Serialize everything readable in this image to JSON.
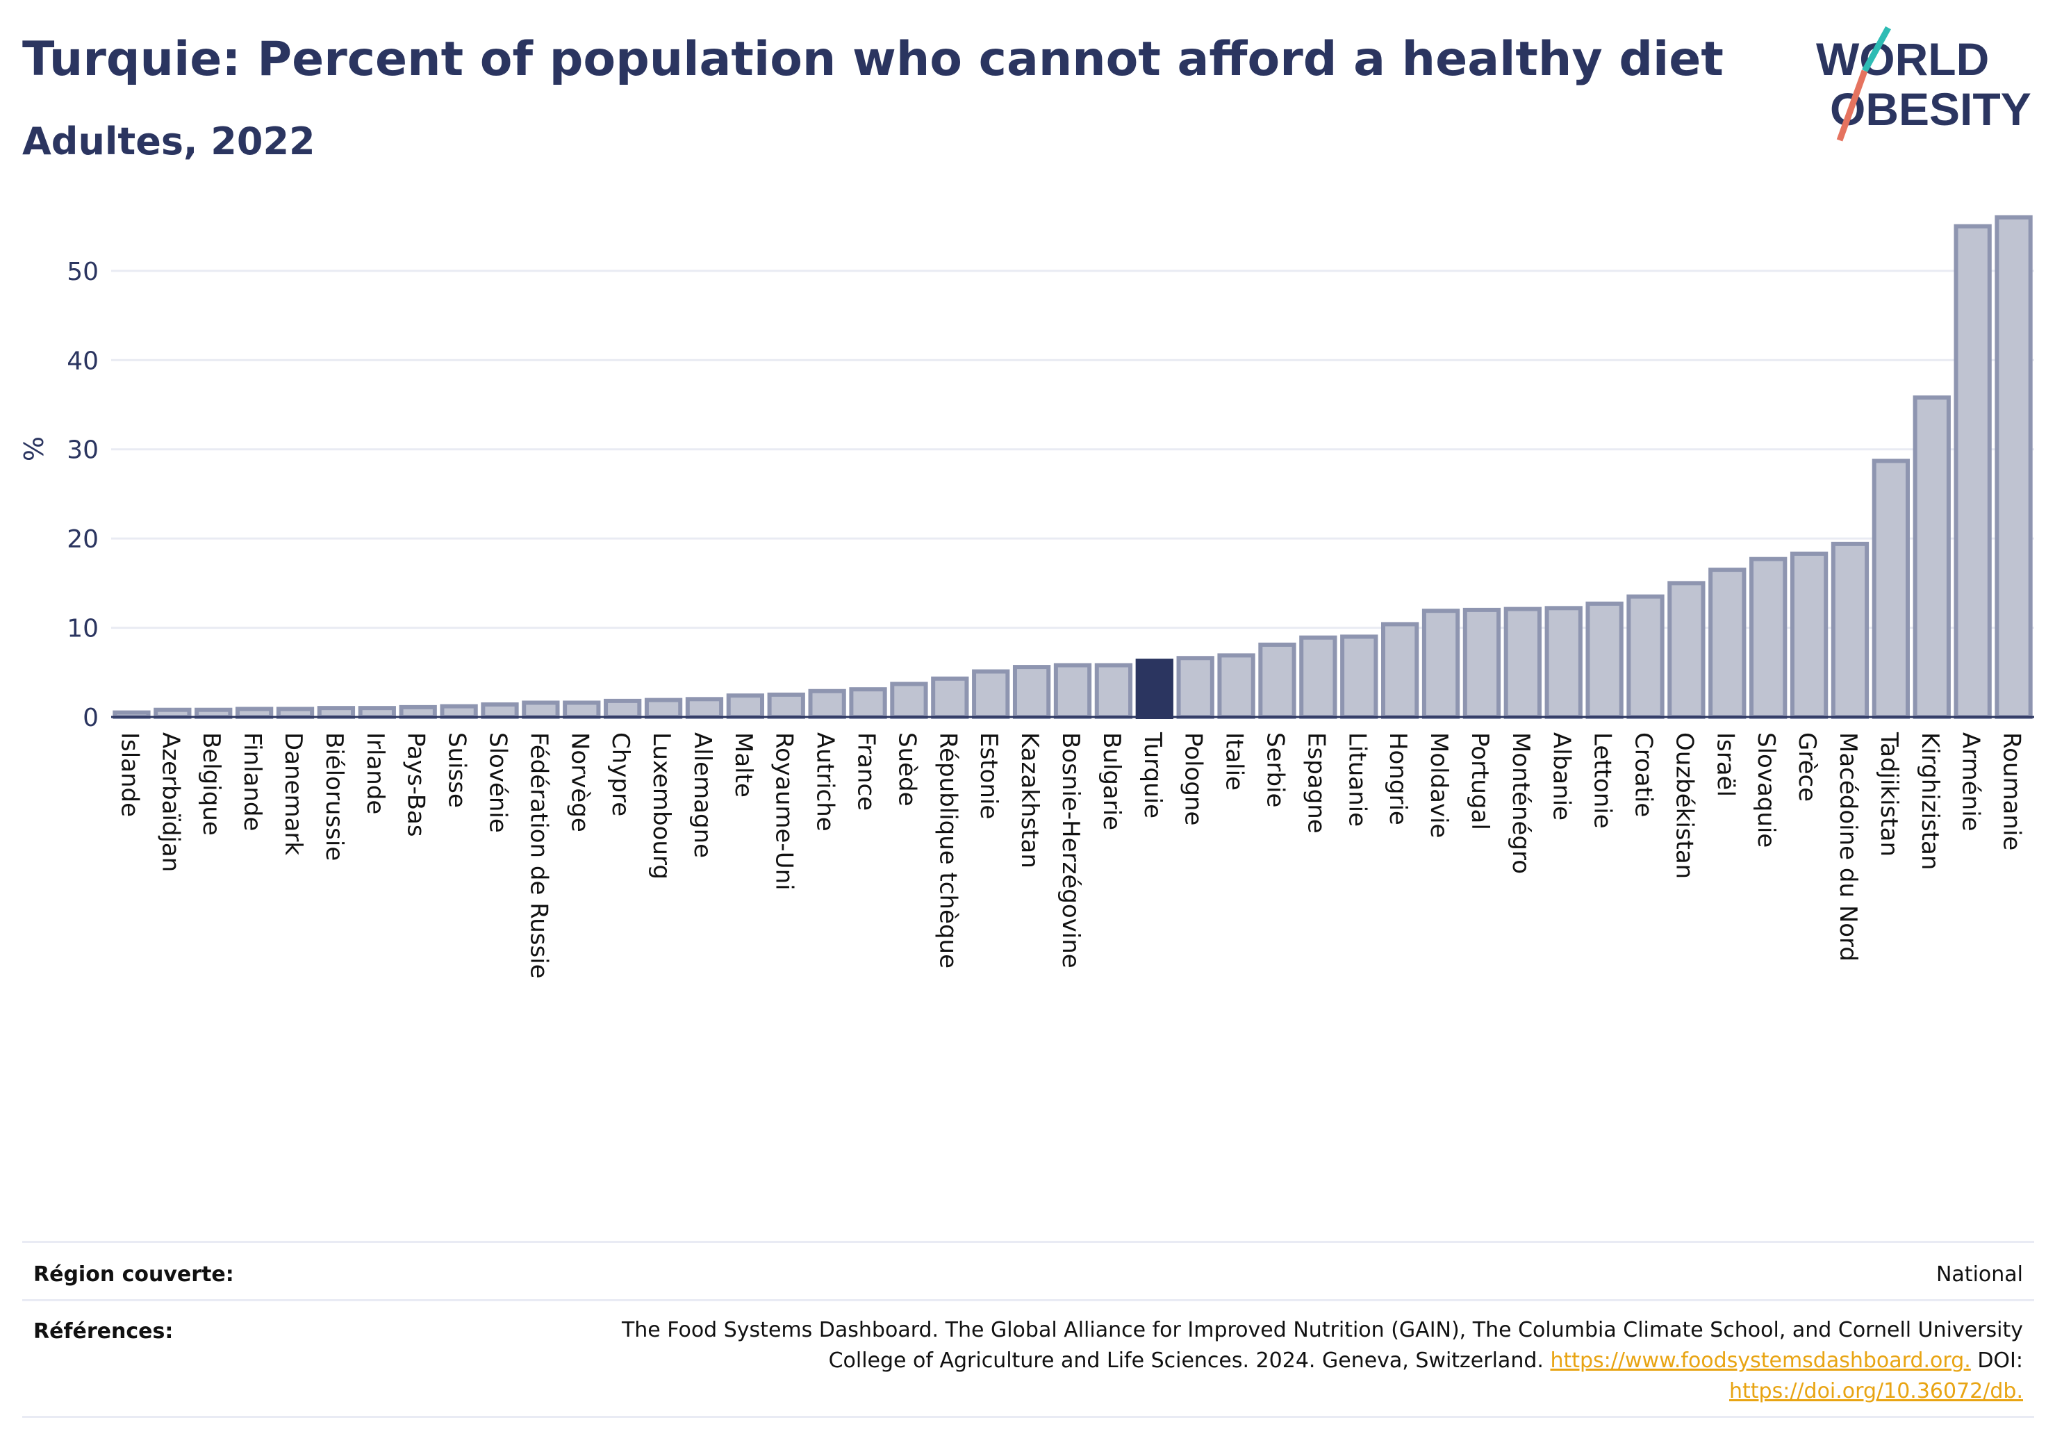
{
  "header": {
    "title": "Turquie: Percent of population who cannot afford a healthy diet",
    "subtitle": "Adultes, 2022"
  },
  "logo": {
    "line1": "WORLD",
    "line2": "OBESITY"
  },
  "colors": {
    "bar": "#bfc3d1",
    "bar_stroke": "#8e95b0",
    "highlight": "#2b3560",
    "grid": "#e9ebf3",
    "logo_teal": "#2ebcb4",
    "logo_coral": "#e5735f",
    "link": "#e8a413"
  },
  "chart_data": {
    "type": "bar",
    "ylabel": "%",
    "ylim": [
      0,
      57
    ],
    "yticks": [
      0,
      10,
      20,
      30,
      40,
      50
    ],
    "highlight": "Turquie",
    "categories": [
      "Islande",
      "Azerbaïdjan",
      "Belgique",
      "Finlande",
      "Danemark",
      "Biélorussie",
      "Irlande",
      "Pays-Bas",
      "Suisse",
      "Slovénie",
      "Fédération de Russie",
      "Norvège",
      "Chypre",
      "Luxembourg",
      "Allemagne",
      "Malte",
      "Royaume-Uni",
      "Autriche",
      "France",
      "Suède",
      "République tchèque",
      "Estonie",
      "Kazakhstan",
      "Bosnie-Herzégovine",
      "Bulgarie",
      "Turquie",
      "Pologne",
      "Italie",
      "Serbie",
      "Espagne",
      "Lituanie",
      "Hongrie",
      "Moldavie",
      "Portugal",
      "Monténégro",
      "Albanie",
      "Lettonie",
      "Croatie",
      "Ouzbékistan",
      "Israël",
      "Slovaquie",
      "Grèce",
      "Macédoine du Nord",
      "Tadjikistan",
      "Kirghizistan",
      "Arménie",
      "Roumanie"
    ],
    "values": [
      0.5,
      0.8,
      0.8,
      0.9,
      0.9,
      1.0,
      1.0,
      1.1,
      1.2,
      1.4,
      1.6,
      1.6,
      1.8,
      1.9,
      2.0,
      2.4,
      2.5,
      2.9,
      3.1,
      3.7,
      4.3,
      5.1,
      5.6,
      5.8,
      5.8,
      6.3,
      6.6,
      6.9,
      8.1,
      8.9,
      9.0,
      10.4,
      11.9,
      12.0,
      12.1,
      12.2,
      12.7,
      13.5,
      15.0,
      16.5,
      17.7,
      18.3,
      19.4,
      28.7,
      35.8,
      55.0,
      56.0
    ]
  },
  "footer": {
    "region_label": "Région couverte:",
    "region_value": "National",
    "references_label": "Références:",
    "references_line1": "The Food Systems Dashboard. The Global Alliance for Improved Nutrition (GAIN), The Columbia Climate School, and Cornell University",
    "references_line2": "College of Agriculture and Life Sciences. 2024. Geneva, Switzerland.",
    "references_link1": "https://www.foodsystemsdashboard.org.",
    "references_doi": "DOI:",
    "references_link2": "https://doi.org/10.36072/db."
  }
}
